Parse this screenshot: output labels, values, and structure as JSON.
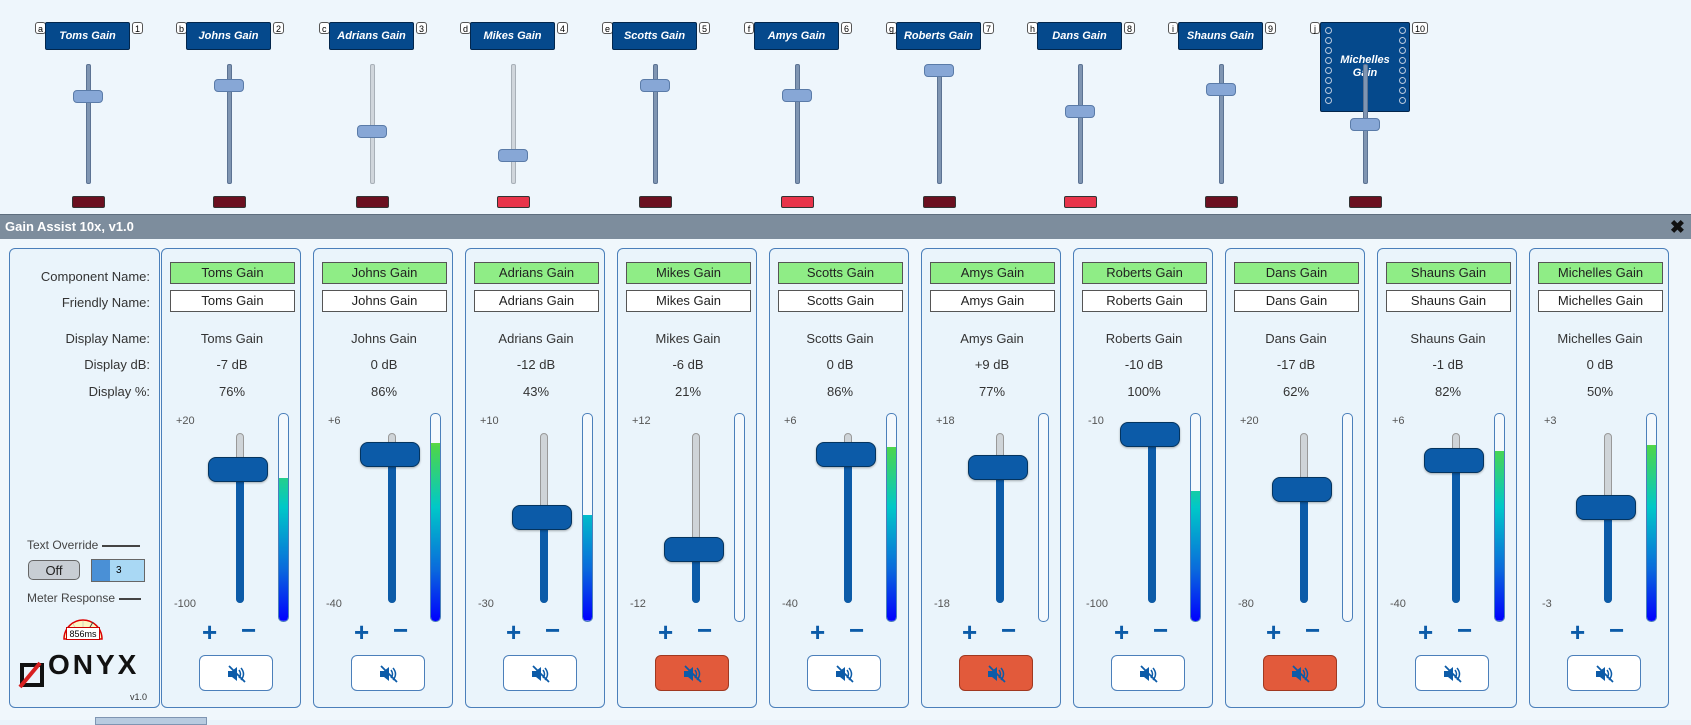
{
  "panel": {
    "title": "Gain Assist 10x, v1.0"
  },
  "labels": {
    "component_name": "Component Name:",
    "friendly_name": "Friendly Name:",
    "display_name": "Display Name:",
    "display_db": "Display dB:",
    "display_pct": "Display %:",
    "text_override": "Text Override",
    "override_value": "Off",
    "override_count": "3",
    "meter_response": "Meter Response",
    "meter_response_value": "856ms",
    "logo": "ONYX",
    "version": "v1.0"
  },
  "glyphs": {
    "plus": "+",
    "minus": "−",
    "close": "✖"
  },
  "colors": {
    "accent": "#0c5ba8",
    "component_ok": "#8fed86",
    "mute_on": "#e25a3b",
    "led_off": "#6b1020",
    "led_on": "#e8344a",
    "title_bar": "#7d8d9d"
  },
  "icons": {
    "mute": "speaker-muted-icon",
    "close": "close-icon",
    "logo": "onyx-logo-icon"
  },
  "channels": [
    {
      "block_name": "Toms Gain",
      "pin_in": "a",
      "pin_out": "1",
      "component": "Toms Gain",
      "friendly": "Toms Gain",
      "display_name": "Toms Gain",
      "db": "-7 dB",
      "pct": "76%",
      "max": "+20",
      "min": "-100",
      "level": 0.76,
      "meter": 0.69,
      "muted": false,
      "led": false
    },
    {
      "block_name": "Johns Gain",
      "pin_in": "b",
      "pin_out": "2",
      "component": "Johns Gain",
      "friendly": "Johns Gain",
      "display_name": "Johns Gain",
      "db": "0 dB",
      "pct": "86%",
      "max": "+6",
      "min": "-40",
      "level": 0.86,
      "meter": 0.86,
      "muted": false,
      "led": false
    },
    {
      "block_name": "Adrians Gain",
      "pin_in": "c",
      "pin_out": "3",
      "component": "Adrians Gain",
      "friendly": "Adrians Gain",
      "display_name": "Adrians Gain",
      "db": "-12 dB",
      "pct": "43%",
      "max": "+10",
      "min": "-30",
      "level": 0.43,
      "meter": 0.51,
      "muted": false,
      "led": false
    },
    {
      "block_name": "Mikes Gain",
      "pin_in": "d",
      "pin_out": "4",
      "component": "Mikes Gain",
      "friendly": "Mikes Gain",
      "display_name": "Mikes Gain",
      "db": "-6 dB",
      "pct": "21%",
      "max": "+12",
      "min": "-12",
      "level": 0.21,
      "meter": 0.0,
      "muted": true,
      "led": true
    },
    {
      "block_name": "Scotts Gain",
      "pin_in": "e",
      "pin_out": "5",
      "component": "Scotts Gain",
      "friendly": "Scotts Gain",
      "display_name": "Scotts Gain",
      "db": "0 dB",
      "pct": "86%",
      "max": "+6",
      "min": "-40",
      "level": 0.86,
      "meter": 0.84,
      "muted": false,
      "led": false
    },
    {
      "block_name": "Amys Gain",
      "pin_in": "f",
      "pin_out": "6",
      "component": "Amys Gain",
      "friendly": "Amys Gain",
      "display_name": "Amys Gain",
      "db": "+9 dB",
      "pct": "77%",
      "max": "+18",
      "min": "-18",
      "level": 0.77,
      "meter": 0.0,
      "muted": true,
      "led": true
    },
    {
      "block_name": "Roberts Gain",
      "pin_in": "g",
      "pin_out": "7",
      "component": "Roberts Gain",
      "friendly": "Roberts Gain",
      "display_name": "Roberts Gain",
      "db": "-10 dB",
      "pct": "100%",
      "max": "-10",
      "min": "-100",
      "level": 1.0,
      "meter": 0.63,
      "muted": false,
      "led": false
    },
    {
      "block_name": "Dans Gain",
      "pin_in": "h",
      "pin_out": "8",
      "component": "Dans Gain",
      "friendly": "Dans Gain",
      "display_name": "Dans Gain",
      "db": "-17 dB",
      "pct": "62%",
      "max": "+20",
      "min": "-80",
      "level": 0.62,
      "meter": 0.0,
      "muted": true,
      "led": true
    },
    {
      "block_name": "Shauns Gain",
      "pin_in": "i",
      "pin_out": "9",
      "component": "Shauns Gain",
      "friendly": "Shauns Gain",
      "display_name": "Shauns Gain",
      "db": "-1 dB",
      "pct": "82%",
      "max": "+6",
      "min": "-40",
      "level": 0.82,
      "meter": 0.82,
      "muted": false,
      "led": false
    },
    {
      "block_name": "Michelles Gain",
      "pin_in": "j",
      "pin_out": "10",
      "component": "Michelles Gain",
      "friendly": "Michelles Gain",
      "display_name": "Michelles Gain",
      "db": "0 dB",
      "pct": "50%",
      "max": "+3",
      "min": "-3",
      "level": 0.5,
      "meter": 0.85,
      "muted": false,
      "led": false
    }
  ]
}
